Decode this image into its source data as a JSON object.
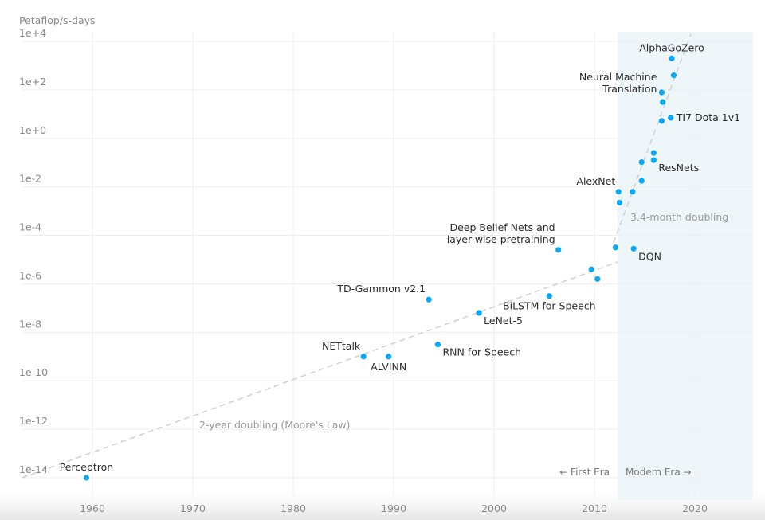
{
  "chart_data": {
    "type": "scatter",
    "title": "",
    "ylabel": "Petaflop/s-days",
    "xlabel": "",
    "yscale": "log",
    "xlim": [
      1953,
      2025.8
    ],
    "ylim_log10": [
      -14,
      4
    ],
    "x_ticks": [
      1960,
      1970,
      1980,
      1990,
      2000,
      2010,
      2020
    ],
    "y_ticks": [
      "1e+4",
      "1e+2",
      "1e+0",
      "1e-2",
      "1e-4",
      "1e-6",
      "1e-8",
      "1e-10",
      "1e-12",
      "1e-14"
    ],
    "y_ticks_log10": [
      4,
      2,
      0,
      -2,
      -4,
      -6,
      -8,
      -10,
      -12,
      -14
    ],
    "grid": true,
    "colors": {
      "point": "#0aa8f5",
      "trend": "#d0d0d0",
      "modern_era_shade": "#eef6f9",
      "text": "#2b2b2b",
      "muted": "#8a8a8a"
    },
    "modern_era_start": 2012.3,
    "points": [
      {
        "x": 1959.4,
        "log10_y": -14.0,
        "label": [
          "Perceptron"
        ],
        "anchor": "above"
      },
      {
        "x": 1987.0,
        "log10_y": -9.0,
        "label": [
          "NETtalk"
        ],
        "anchor": "above-left"
      },
      {
        "x": 1989.5,
        "log10_y": -9.0,
        "label": [
          "ALVINN"
        ],
        "anchor": "below"
      },
      {
        "x": 1993.5,
        "log10_y": -6.65,
        "label": [
          "TD-Gammon v2.1"
        ],
        "anchor": "above-left"
      },
      {
        "x": 1994.4,
        "log10_y": -8.5,
        "label": [
          "RNN for Speech"
        ],
        "anchor": "below-right"
      },
      {
        "x": 1998.5,
        "log10_y": -7.2,
        "label": [
          "LeNet-5"
        ],
        "anchor": "below-right"
      },
      {
        "x": 2005.5,
        "log10_y": -6.5,
        "label": [
          "BiLSTM for Speech"
        ],
        "anchor": "below"
      },
      {
        "x": 2006.4,
        "log10_y": -4.6,
        "label": [
          "Deep Belief Nets and",
          "layer-wise pretraining"
        ],
        "anchor": "above-left"
      },
      {
        "x": 2009.7,
        "log10_y": -5.4,
        "label": [],
        "anchor": ""
      },
      {
        "x": 2010.3,
        "log10_y": -5.8,
        "label": [],
        "anchor": ""
      },
      {
        "x": 2012.1,
        "log10_y": -4.5,
        "label": [],
        "anchor": ""
      },
      {
        "x": 2013.9,
        "log10_y": -4.55,
        "label": [
          "DQN"
        ],
        "anchor": "below-right"
      },
      {
        "x": 2012.4,
        "log10_y": -2.2,
        "label": [
          "AlexNet"
        ],
        "anchor": "above-left"
      },
      {
        "x": 2012.5,
        "log10_y": -2.65,
        "label": [],
        "anchor": ""
      },
      {
        "x": 2013.8,
        "log10_y": -2.2,
        "label": [],
        "anchor": ""
      },
      {
        "x": 2014.7,
        "log10_y": -1.75,
        "label": [],
        "anchor": ""
      },
      {
        "x": 2014.7,
        "log10_y": -0.98,
        "label": [],
        "anchor": ""
      },
      {
        "x": 2015.9,
        "log10_y": -0.6,
        "label": [],
        "anchor": ""
      },
      {
        "x": 2015.9,
        "log10_y": -0.9,
        "label": [
          "ResNets"
        ],
        "anchor": "below-right"
      },
      {
        "x": 2016.7,
        "log10_y": 0.72,
        "label": [],
        "anchor": ""
      },
      {
        "x": 2017.6,
        "log10_y": 0.85,
        "label": [
          "TI7 Dota 1v1"
        ],
        "anchor": "right"
      },
      {
        "x": 2016.8,
        "log10_y": 1.5,
        "label": [],
        "anchor": ""
      },
      {
        "x": 2016.7,
        "log10_y": 1.9,
        "label": [
          "Neural Machine",
          "Translation"
        ],
        "anchor": "left"
      },
      {
        "x": 2017.9,
        "log10_y": 2.6,
        "label": [],
        "anchor": ""
      },
      {
        "x": 2017.7,
        "log10_y": 3.3,
        "label": [
          "AlphaGoZero"
        ],
        "anchor": "above"
      }
    ],
    "trend_lines": [
      {
        "name": "2-year doubling (Moore's Law)",
        "from": [
          1953,
          -14
        ],
        "to": [
          2012.3,
          -5.1
        ]
      },
      {
        "name": "3.4-month doubling",
        "from": [
          2011.9,
          -4.3
        ],
        "to": [
          2019.6,
          4.3
        ]
      }
    ],
    "annotations": {
      "moore": "2-year doubling (Moore's Law)",
      "modern": "3.4-month doubling",
      "first_era": "← First Era",
      "modern_era": "Modern Era →"
    }
  }
}
